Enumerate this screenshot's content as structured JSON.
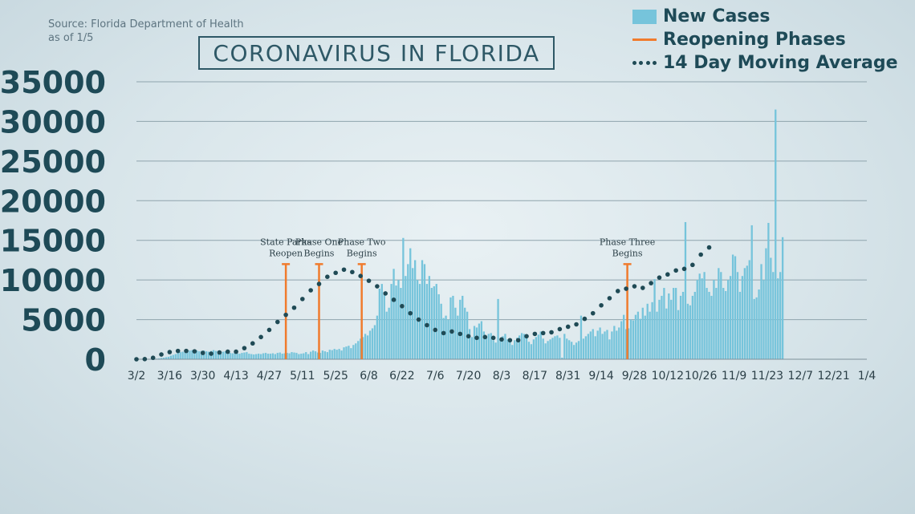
{
  "source_line1": "Source: Florida Department of Health",
  "source_line2": "as of 1/5",
  "title": "CORONAVIRUS IN FLORIDA",
  "colors": {
    "bars": "#76c4db",
    "phase": "#f07b2d",
    "average": "#1f4a55",
    "axis_text": "#1e4a57"
  },
  "chart_data": {
    "type": "bar",
    "title": "CORONAVIRUS IN FLORIDA",
    "xlabel": "",
    "ylabel": "",
    "ylim": [
      0,
      35000
    ],
    "yticks": [
      0,
      5000,
      10000,
      15000,
      20000,
      25000,
      30000,
      35000
    ],
    "xtick_labels": [
      "3/2",
      "3/16",
      "3/30",
      "4/13",
      "4/27",
      "5/11",
      "5/25",
      "6/8",
      "6/22",
      "7/6",
      "7/20",
      "8/3",
      "8/17",
      "8/31",
      "9/14",
      "9/28",
      "10/12",
      "10/26",
      "11/9",
      "11/23",
      "12/7",
      "12/21",
      "1/4"
    ],
    "grid": true,
    "legend": "top-right",
    "legend_entries": [
      "New Cases",
      "Reopening Phases",
      "14 Day Moving Average"
    ],
    "weekly_new_cases": [
      [
        0,
        0,
        0,
        5,
        10,
        20,
        30
      ],
      [
        40,
        70,
        110,
        160,
        200,
        260,
        310
      ],
      [
        450,
        550,
        650,
        800,
        900,
        950,
        1000
      ],
      [
        1050,
        1100,
        1150,
        1200,
        1100,
        1000,
        1050
      ],
      [
        1100,
        1000,
        950,
        1050,
        1150,
        1050,
        1000
      ],
      [
        900,
        950,
        1000,
        850,
        800,
        750,
        800
      ],
      [
        750,
        700,
        800,
        850,
        900,
        700,
        650
      ],
      [
        600,
        650,
        700,
        650,
        750,
        800,
        700
      ],
      [
        700,
        750,
        650,
        800,
        850,
        700,
        750
      ],
      [
        800,
        750,
        900,
        850,
        800,
        650,
        700
      ],
      [
        750,
        900,
        650,
        950,
        1100,
        1000,
        850
      ],
      [
        800,
        1100,
        1000,
        900,
        1200,
        1150,
        1300
      ],
      [
        1200,
        1300,
        1100,
        1500,
        1600,
        1700,
        1400
      ],
      [
        1800,
        2000,
        2300,
        2600,
        2800,
        3200,
        3000
      ],
      [
        3600,
        3900,
        4300,
        5500,
        8900,
        9500,
        8500
      ],
      [
        6000,
        6500,
        9500,
        11400,
        9300,
        10000,
        9000
      ],
      [
        15300,
        10500,
        12000,
        14000,
        11500,
        12500,
        10000
      ],
      [
        9500,
        12500,
        12000,
        9500,
        10500,
        9000,
        9200
      ],
      [
        9500,
        8200,
        7000,
        5200,
        5500,
        5000,
        7800
      ],
      [
        8000,
        6500,
        5500,
        7500,
        8000,
        6500,
        6000
      ],
      [
        3800,
        2800,
        4200,
        4000,
        4500,
        4800,
        3500
      ],
      [
        2800,
        3200,
        3300,
        2400,
        2100,
        7600,
        2500
      ],
      [
        2900,
        3200,
        2500,
        2200,
        1800,
        2400,
        2700
      ],
      [
        3000,
        3300,
        3200,
        3000,
        2200,
        1900,
        2500
      ],
      [
        2800,
        3100,
        3500,
        2600,
        2000,
        2300,
        2500
      ],
      [
        2700,
        2900,
        3000,
        2700,
        200,
        3200,
        2600
      ],
      [
        2400,
        2200,
        1800,
        2100,
        2300,
        5500,
        2600
      ],
      [
        2900,
        3200,
        3500,
        3800,
        2900,
        3600,
        4000
      ],
      [
        3200,
        3500,
        3700,
        2500,
        3500,
        4200,
        3600
      ],
      [
        4000,
        4800,
        5600,
        3800,
        3900,
        5000,
        4900
      ],
      [
        5600,
        6000,
        5100,
        6500,
        5500,
        7000,
        6000
      ],
      [
        7200,
        10100,
        6000,
        7500,
        8000,
        9000,
        6400
      ],
      [
        8300,
        7500,
        9000,
        9000,
        6200,
        8000,
        8500
      ],
      [
        17300,
        7000,
        6800,
        8000,
        8500,
        10000,
        10800
      ],
      [
        10200,
        11000,
        9000,
        8500,
        8000,
        10000,
        9000
      ],
      [
        11500,
        11000,
        9000,
        8600,
        10000,
        10500,
        13200
      ],
      [
        13000,
        11000,
        8500,
        10500,
        11500,
        11800,
        12500
      ],
      [
        16900,
        7600,
        7800,
        8800,
        12000,
        10000,
        14000
      ],
      [
        17200,
        12800,
        11000,
        31500,
        10200,
        11000,
        15400
      ]
    ],
    "new_cases_dates_note": "",
    "moving_average": [
      0,
      20,
      180,
      600,
      900,
      1050,
      1050,
      1000,
      800,
      700,
      850,
      950,
      950,
      1400,
      2000,
      2800,
      3700,
      4700,
      5600,
      6500,
      7600,
      8700,
      9500,
      10400,
      10900,
      11300,
      11000,
      10500,
      9900,
      9200,
      8300,
      7500,
      6700,
      5800,
      5000,
      4300,
      3700,
      3300,
      3500,
      3200,
      2900,
      2700,
      2800,
      2700,
      2500,
      2400,
      2400,
      2900,
      3200,
      3300,
      3400,
      3800,
      4100,
      4400,
      5100,
      5800,
      6800,
      7700,
      8600,
      8900,
      9200,
      9000,
      9600,
      10300,
      10700,
      11200,
      11400,
      11900,
      13200,
      14100
    ],
    "moving_average_start": "3/2",
    "moving_average_step_days": 3.5,
    "phases": [
      {
        "date": "5/4",
        "day_index": 63,
        "value": 12000,
        "label_line1": "State Parks",
        "label_line2": "Reopen"
      },
      {
        "date": "5/18",
        "day_index": 77,
        "value": 12000,
        "label_line1": "Phase One",
        "label_line2": "Begins"
      },
      {
        "date": "6/5",
        "day_index": 95,
        "value": 12000,
        "label_line1": "Phase Two",
        "label_line2": "Begins"
      },
      {
        "date": "9/25",
        "day_index": 207,
        "value": 12000,
        "label_line1": "Phase Three",
        "label_line2": "Begins"
      }
    ]
  },
  "legend": {
    "new_cases": "New Cases",
    "reopening": "Reopening Phases",
    "average": "14 Day Moving Average"
  }
}
